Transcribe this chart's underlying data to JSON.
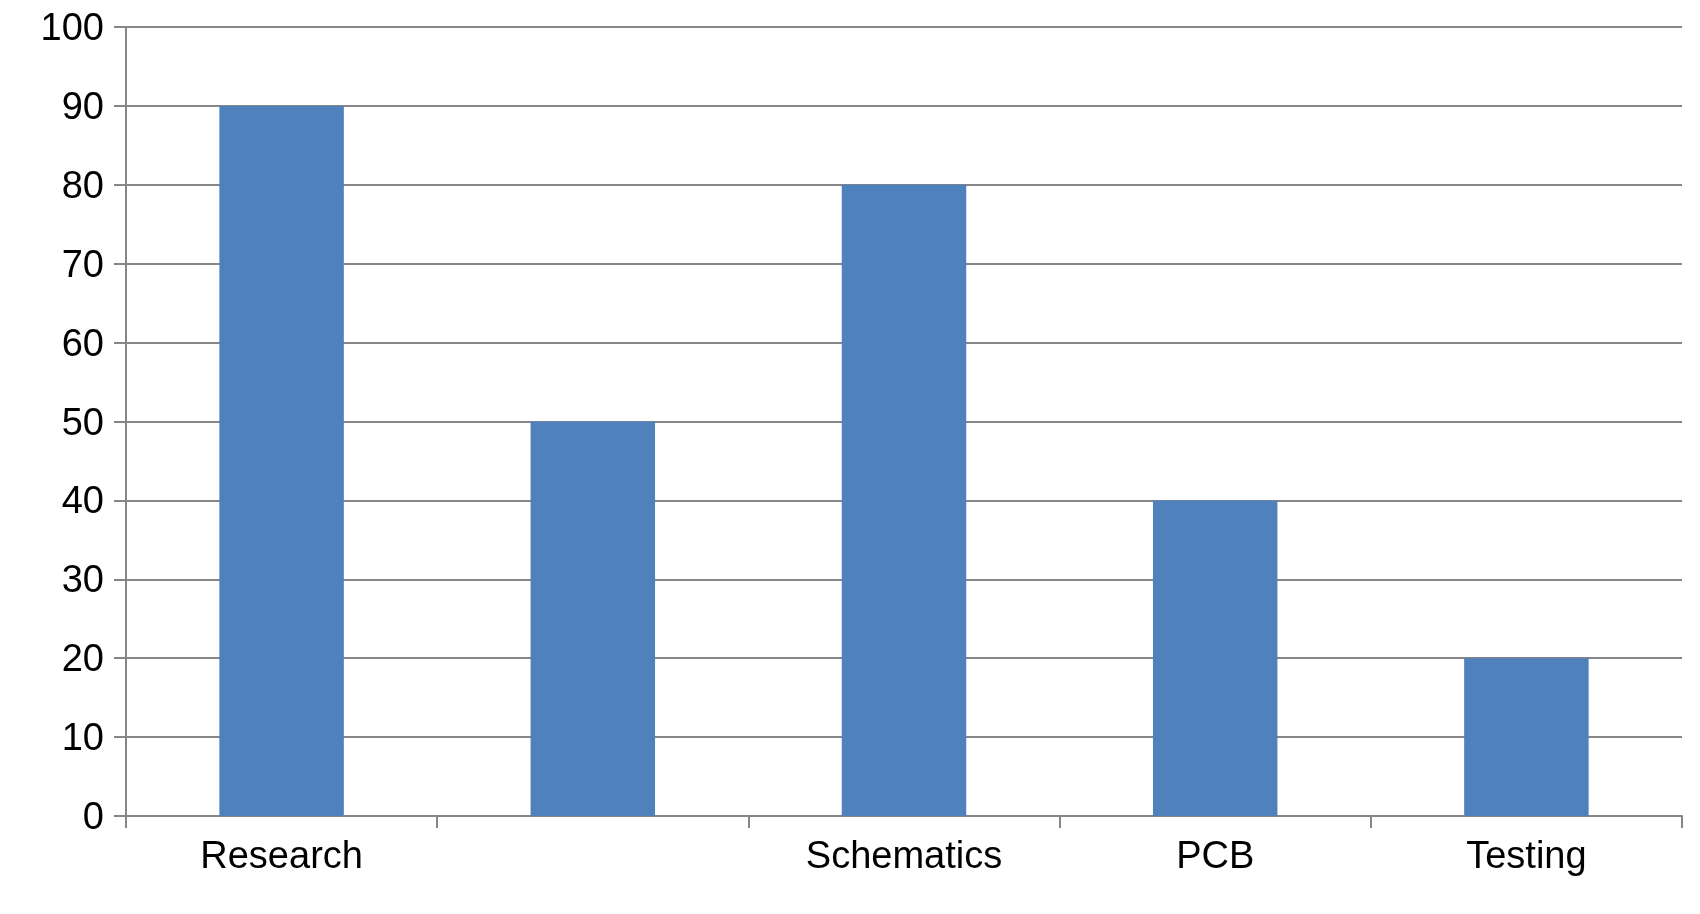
{
  "chart_data": {
    "type": "bar",
    "categories": [
      "Research",
      null,
      "Schematics",
      "PCB",
      "Testing"
    ],
    "values": [
      90,
      50,
      80,
      40,
      20
    ],
    "color": "#4f81bd",
    "ylim": [
      0,
      100
    ],
    "yticks": [
      0,
      10,
      20,
      30,
      40,
      50,
      60,
      70,
      80,
      90,
      100
    ],
    "grid": "y"
  }
}
